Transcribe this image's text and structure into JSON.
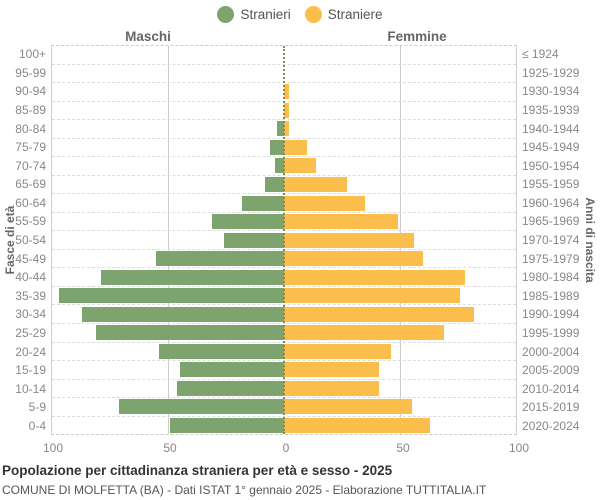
{
  "legend": {
    "male_label": "Stranieri",
    "female_label": "Straniere"
  },
  "headers": {
    "left": "Maschi",
    "right": "Femmine"
  },
  "axis": {
    "left_title": "Fasce di età",
    "right_title": "Anni di nascita",
    "x_ticks": [
      "100",
      "50",
      "0",
      "50",
      "100"
    ]
  },
  "footer": {
    "title": "Popolazione per cittadinanza straniera per età e sesso - 2025",
    "subtitle": "COMUNE DI MOLFETTA (BA) - Dati ISTAT 1° gennaio 2025 - Elaborazione TUTTITALIA.IT"
  },
  "colors": {
    "male": "#7DA46E",
    "female": "#FBBE4D",
    "grid": "#cccccc",
    "text": "#888888"
  },
  "chart_data": {
    "type": "bar",
    "subtype": "population-pyramid",
    "title": "Popolazione per cittadinanza straniera per età e sesso - 2025",
    "legend_position": "top-center",
    "grid": true,
    "x_max_per_side": 100,
    "x_tick_values": [
      100,
      50,
      0,
      50,
      100
    ],
    "ylabel_left": "Fasce di età",
    "ylabel_right": "Anni di nascita",
    "categories_age": [
      "100+",
      "95-99",
      "90-94",
      "85-89",
      "80-84",
      "75-79",
      "70-74",
      "65-69",
      "60-64",
      "55-59",
      "50-54",
      "45-49",
      "40-44",
      "35-39",
      "30-34",
      "25-29",
      "20-24",
      "15-19",
      "10-14",
      "5-9",
      "0-4"
    ],
    "categories_birth_years": [
      "≤ 1924",
      "1925-1929",
      "1930-1934",
      "1935-1939",
      "1940-1944",
      "1945-1949",
      "1950-1954",
      "1955-1959",
      "1960-1964",
      "1965-1969",
      "1970-1974",
      "1975-1979",
      "1980-1984",
      "1985-1989",
      "1990-1994",
      "1995-1999",
      "2000-2004",
      "2005-2009",
      "2010-2014",
      "2015-2019",
      "2020-2024"
    ],
    "series": [
      {
        "name": "Stranieri",
        "side": "left",
        "color": "#7DA46E",
        "values": [
          0,
          0,
          0,
          0,
          3,
          6,
          4,
          8,
          18,
          31,
          26,
          55,
          79,
          97,
          87,
          81,
          54,
          45,
          46,
          71,
          49
        ]
      },
      {
        "name": "Straniere",
        "side": "right",
        "color": "#FBBE4D",
        "values": [
          0,
          0,
          2,
          2,
          2,
          10,
          14,
          27,
          35,
          49,
          56,
          60,
          78,
          76,
          82,
          69,
          46,
          41,
          41,
          55,
          63
        ]
      }
    ]
  }
}
